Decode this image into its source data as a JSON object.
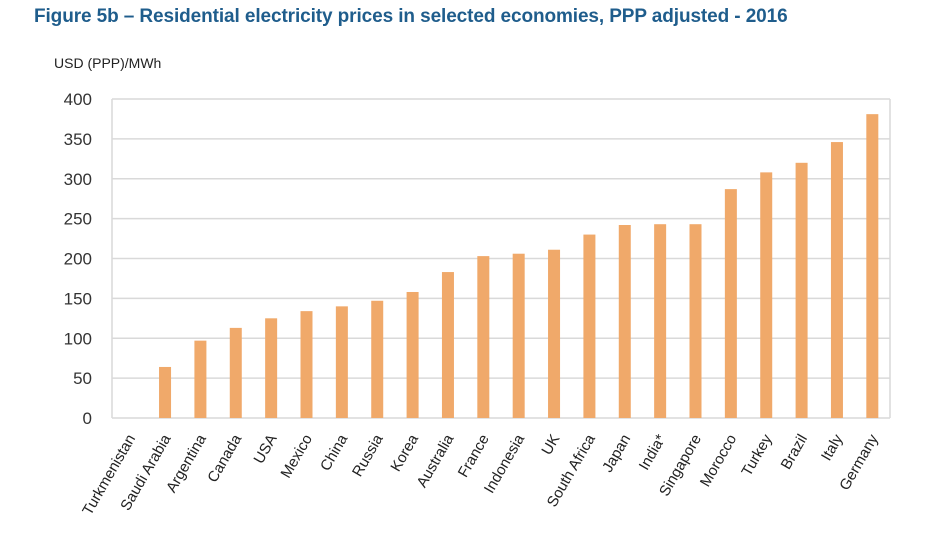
{
  "chart_data": {
    "type": "bar",
    "title": "Figure 5b – Residential electricity prices in selected economies, PPP adjusted - 2016",
    "ylabel": "USD (PPP)/MWh",
    "xlabel": "",
    "ylim": [
      0,
      400
    ],
    "yticks": [
      0,
      50,
      100,
      150,
      200,
      250,
      300,
      350,
      400
    ],
    "grid": true,
    "legend": "none",
    "categories": [
      "Turkmenistan",
      "Saudi Arabia",
      "Argentina",
      "Canada",
      "USA",
      "Mexico",
      "China",
      "Russia",
      "Korea",
      "Australia",
      "France",
      "Indonesia",
      "UK",
      "South Africa",
      "Japan",
      "India*",
      "Singapore",
      "Morocco",
      "Turkey",
      "Brazil",
      "Italy",
      "Germany"
    ],
    "values": [
      0,
      64,
      97,
      113,
      125,
      134,
      140,
      147,
      158,
      183,
      203,
      206,
      211,
      230,
      242,
      243,
      243,
      287,
      308,
      320,
      346,
      381
    ],
    "bar_color": "#f0a96a"
  }
}
